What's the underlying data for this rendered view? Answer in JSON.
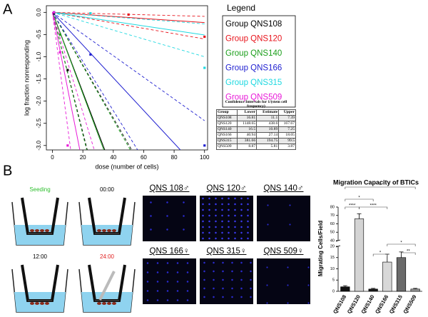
{
  "panel_labels": [
    "A",
    "B"
  ],
  "chart_data": [
    {
      "type": "line",
      "x_label": "dose (number of cells)",
      "y_label": "log fraction nonresponding",
      "xlim": [
        -4,
        102
      ],
      "ylim": [
        -3.1,
        0.15
      ],
      "xticks": [
        0,
        20,
        40,
        60,
        80,
        100
      ],
      "yticks": [
        {
          "value": 0,
          "label": "0.0"
        },
        -0.5,
        {
          "value": -1,
          "label": "-1.0"
        },
        -1.5,
        {
          "value": -2,
          "label": "-2.0"
        },
        -2.5,
        {
          "value": -3,
          "label": "-3.0"
        }
      ],
      "legend": {
        "title": "Legend",
        "position": "right"
      },
      "series": [
        {
          "name": "Group QNS108",
          "color": "#000000",
          "x": [
            1,
            10
          ],
          "values": [
            -0.02,
            -1.3
          ],
          "fit": {
            "x": [
              0,
              34.4
            ],
            "values": [
              0,
              -3.1
            ]
          },
          "lower": {
            "x": [
              0,
              52.1
            ],
            "values": [
              0,
              -3.1
            ]
          },
          "upper": {
            "x": [
              0,
              22.9
            ],
            "values": [
              0,
              -3.1
            ]
          }
        },
        {
          "name": "Group QNS120",
          "color": "#e8141c",
          "x": [
            1,
            50,
            100
          ],
          "values": [
            0,
            -0.05,
            -0.55
          ],
          "fit": {
            "x": [
              0,
              100
            ],
            "values": [
              0,
              -0.23
            ]
          },
          "lower": {
            "x": [
              0,
              100
            ],
            "values": [
              0,
              -0.09
            ]
          },
          "upper": {
            "x": [
              0,
              100
            ],
            "values": [
              0,
              -0.6
            ]
          }
        },
        {
          "name": "Group QNS140",
          "color": "#1a9e1a",
          "x": [
            1,
            5
          ],
          "values": [
            0,
            -0.5
          ],
          "fit": {
            "x": [
              0,
              33.8
            ],
            "values": [
              0,
              -3.1
            ]
          },
          "lower": {
            "x": [
              0,
              51.2
            ],
            "values": [
              0,
              -3.1
            ]
          },
          "upper": {
            "x": [
              0,
              22.5
            ],
            "values": [
              0,
              -3.1
            ]
          }
        },
        {
          "name": "Group QNS166",
          "color": "#1f1fd0",
          "x": [
            1,
            25,
            100
          ],
          "values": [
            0,
            -0.95,
            -3.0
          ],
          "fit": {
            "x": [
              0,
              84.1
            ],
            "values": [
              0,
              -3.1
            ]
          },
          "lower": {
            "x": [
              0,
              100
            ],
            "values": [
              0,
              -2.44
            ]
          },
          "upper": {
            "x": [
              0,
              56.0
            ],
            "values": [
              0,
              -3.1
            ]
          }
        },
        {
          "name": "Group QNS315",
          "color": "#1ed8e0",
          "x": [
            1,
            25,
            100
          ],
          "values": [
            0,
            -0.02,
            -1.25
          ],
          "fit": {
            "x": [
              0,
              100
            ],
            "values": [
              0,
              -0.51
            ]
          },
          "lower": {
            "x": [
              0,
              100
            ],
            "values": [
              0,
              -0.26
            ]
          },
          "upper": {
            "x": [
              0,
              100
            ],
            "values": [
              0,
              -1.0
            ]
          }
        },
        {
          "name": "Group QNS509",
          "color": "#e81ad8",
          "x": [
            1,
            5,
            10
          ],
          "values": [
            0,
            -0.9,
            -3.0
          ],
          "fit": {
            "x": [
              0,
              18.0
            ],
            "values": [
              0,
              -3.1
            ]
          },
          "lower": {
            "x": [
              0,
              27.5
            ],
            "values": [
              0,
              -3.1
            ]
          },
          "upper": {
            "x": [
              0,
              12.0
            ],
            "values": [
              0,
              -3.1
            ]
          }
        }
      ]
    },
    {
      "type": "bar",
      "title": "Migration  Capacity of BTICs",
      "y_label": "Migrating Cells/Field",
      "categories": [
        "QNS108",
        "QNS120",
        "QNS140",
        "QNS166",
        "QNS315",
        "QNS509"
      ],
      "values": [
        2,
        66,
        1,
        13,
        15,
        1
      ],
      "errors": [
        0.5,
        6,
        0.3,
        3.5,
        2.5,
        0.3
      ],
      "colors": [
        "#111111",
        "#d4d4d4",
        "#1a1a1a",
        "#d8d8d8",
        "#6a6a6a",
        "#9a9a9a"
      ],
      "ylim": [
        0,
        80
      ],
      "ybreak": [
        20,
        40
      ],
      "yticks": [
        0,
        5,
        10,
        15,
        20,
        40,
        50,
        60,
        70,
        80
      ],
      "annotations": [
        "*",
        "*",
        "****",
        "****",
        "*",
        "*",
        "**"
      ]
    }
  ],
  "table": {
    "title": "Confidence Intervals for 1/(stem cell frequency)",
    "columns": [
      "Group",
      "Lower",
      "Estimate",
      "Upper"
    ],
    "rows": [
      [
        "QNS108",
        "16.81",
        "11.1",
        "7.39"
      ],
      [
        "QNS120",
        "1148.65",
        "438.6",
        "167.67"
      ],
      [
        "QNS140",
        "16.5",
        "10.89",
        "7.25"
      ],
      [
        "QNS166",
        "40.94",
        "27.14",
        "18.05"
      ],
      [
        "QNS315",
        "381.66",
        "194.75",
        "99.5"
      ],
      [
        "QNS509",
        "8.87",
        "5.81",
        "3.87"
      ]
    ]
  },
  "assay_steps": [
    "Seeding",
    "00:00",
    "12:00",
    "24:00"
  ],
  "image_labels": [
    "QNS 108♂",
    "QNS 120♂",
    "QNS 140♂",
    "QNS 166♀",
    "QNS 315♀",
    "QNS 509♀"
  ]
}
